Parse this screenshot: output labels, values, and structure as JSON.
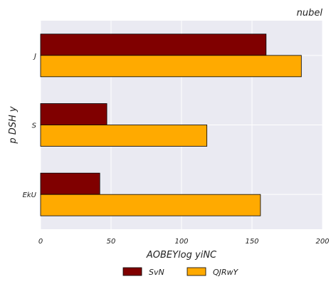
{
  "chart_data": {
    "type": "bar",
    "orientation": "horizontal",
    "title": "nubel",
    "xlabel": "AOBEYlog yiNC",
    "ylabel": "p DSH y",
    "categories": [
      "J",
      "S",
      "EkU"
    ],
    "series": [
      {
        "name": "SvN",
        "values": [
          160,
          47,
          42
        ],
        "color": "#800000"
      },
      {
        "name": "QJRwY",
        "values": [
          185,
          118,
          156
        ],
        "color": "#ffaa00"
      }
    ],
    "xlim": [
      0,
      200
    ],
    "xticks": [
      0,
      50,
      100,
      150,
      200
    ],
    "grid": true,
    "legend_position": "bottom-center",
    "background": "#eaeaf2"
  }
}
